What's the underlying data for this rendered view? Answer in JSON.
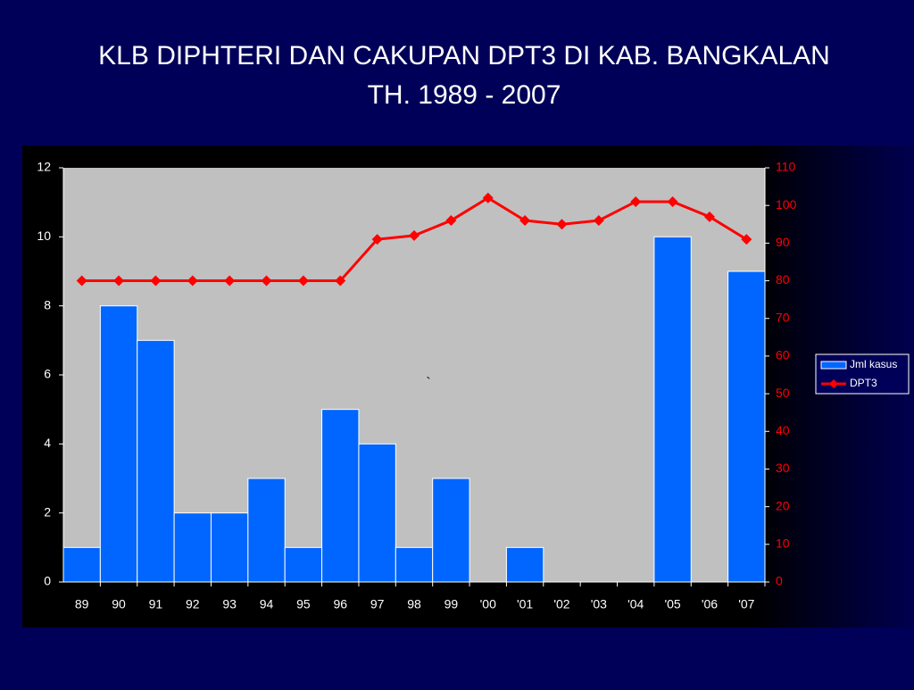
{
  "chart_data": {
    "type": "bar-line",
    "title": [
      "KLB DIPHTERI DAN CAKUPAN DPT3  DI KAB. BANGKALAN",
      "TH. 1989 - 2007"
    ],
    "categories": [
      "89",
      "90",
      "91",
      "92",
      "93",
      "94",
      "95",
      "96",
      "97",
      "98",
      "99",
      "'00",
      "'01",
      "'02",
      "'03",
      "'04",
      "'05",
      "'06",
      "'07"
    ],
    "series": [
      {
        "name": "Jml kasus",
        "type": "bar",
        "color": "#0066ff",
        "values": [
          1,
          8,
          7,
          2,
          2,
          3,
          1,
          5,
          4,
          1,
          3,
          0,
          1,
          0,
          0,
          0,
          10,
          0,
          9
        ]
      },
      {
        "name": "DPT3",
        "type": "line",
        "axis": "y2",
        "color": "#ff0000",
        "values": [
          80,
          80,
          80,
          80,
          80,
          80,
          80,
          80,
          91,
          92,
          96,
          102,
          96,
          95,
          96,
          101,
          101,
          97,
          91
        ]
      }
    ],
    "ylim": [
      0,
      12
    ],
    "yticks": [
      0,
      2,
      4,
      6,
      8,
      10,
      12
    ],
    "y2lim": [
      0,
      110
    ],
    "y2ticks": [
      0,
      10,
      20,
      30,
      40,
      50,
      60,
      70,
      80,
      90,
      100,
      110
    ],
    "annotation": "`",
    "legend": "right"
  }
}
